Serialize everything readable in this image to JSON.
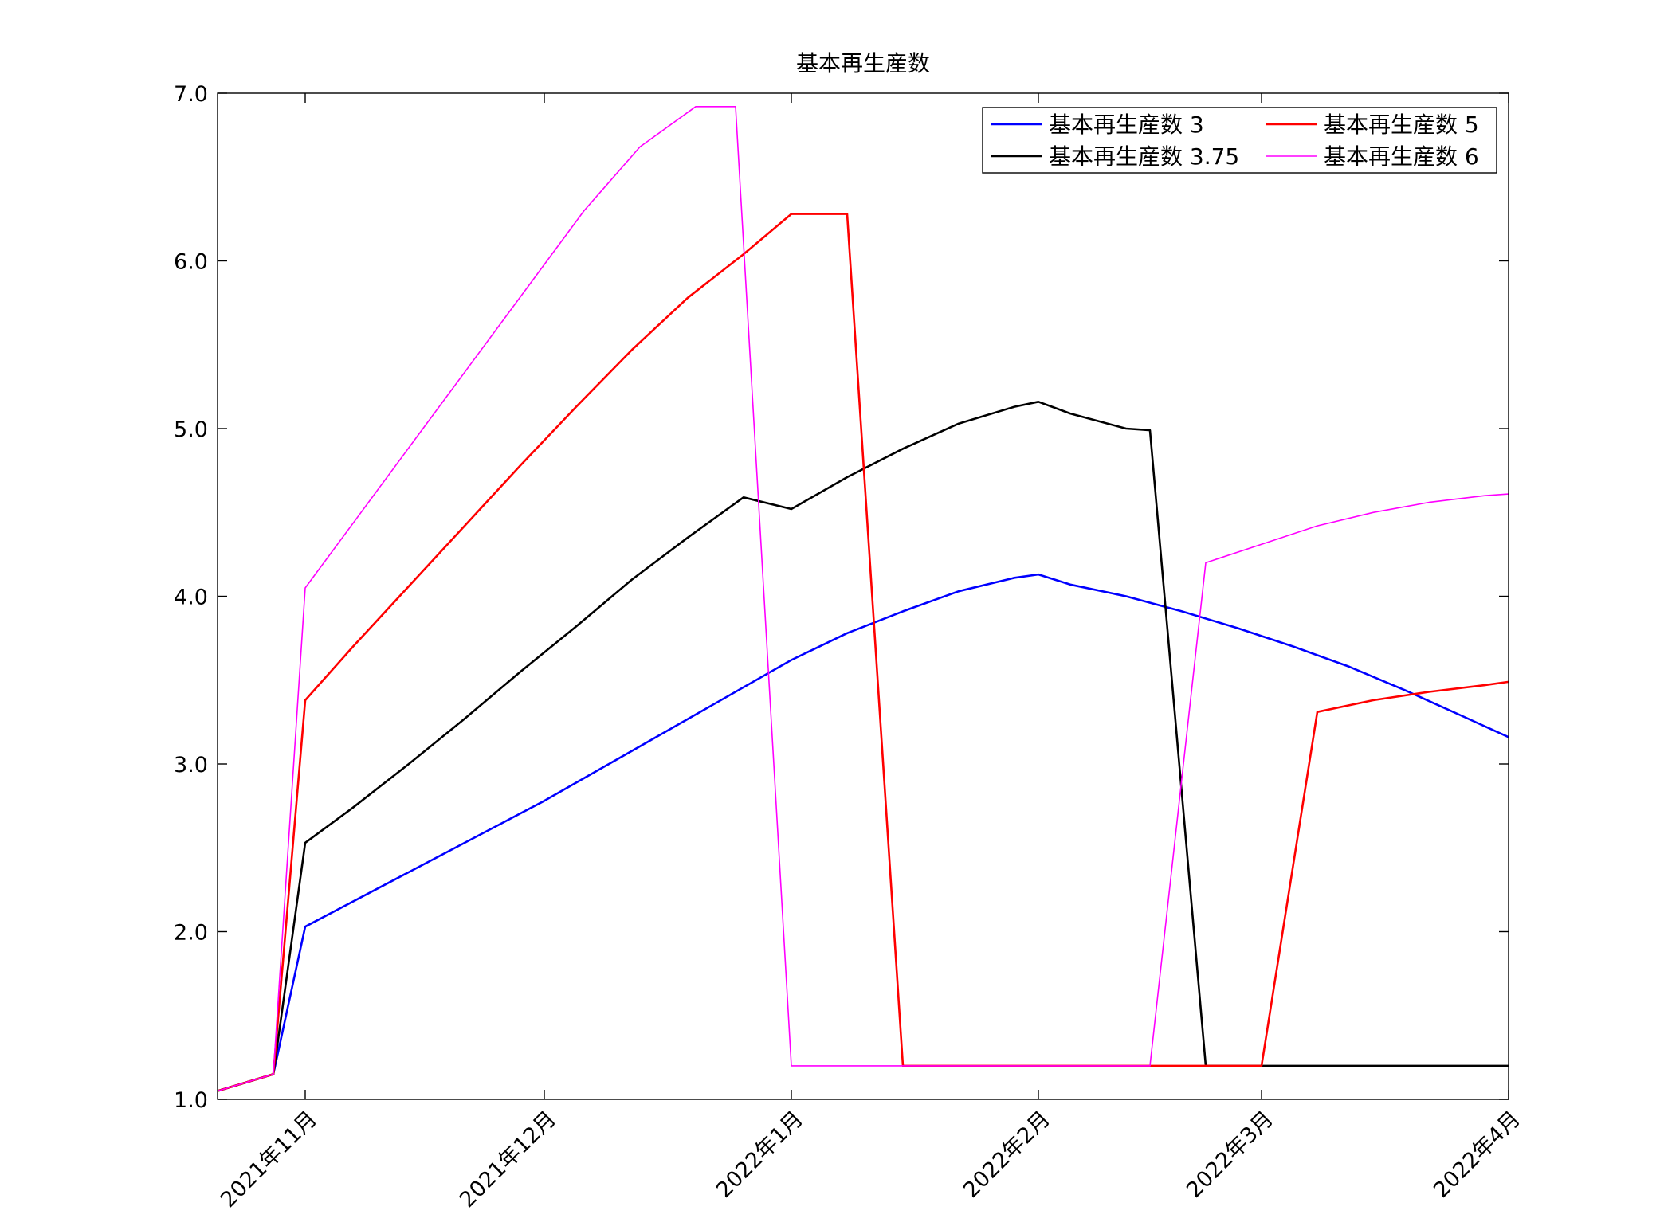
{
  "chart_data": {
    "type": "line",
    "title": "基本再生産数",
    "xlabel": "",
    "ylabel": "",
    "xlim": [
      "2021-10-21",
      "2022-04-01"
    ],
    "ylim": [
      1.0,
      7.0
    ],
    "grid": false,
    "legend_position": "top-right",
    "y_ticks": [
      {
        "value": 1.0,
        "label": "1.0"
      },
      {
        "value": 2.0,
        "label": "2.0"
      },
      {
        "value": 3.0,
        "label": "3.0"
      },
      {
        "value": 4.0,
        "label": "4.0"
      },
      {
        "value": 5.0,
        "label": "5.0"
      },
      {
        "value": 6.0,
        "label": "6.0"
      },
      {
        "value": 7.0,
        "label": "7.0"
      }
    ],
    "x_ticks": [
      {
        "date": "2021-11-01",
        "label": "2021年11月"
      },
      {
        "date": "2021-12-01",
        "label": "2021年12月"
      },
      {
        "date": "2022-01-01",
        "label": "2022年1月"
      },
      {
        "date": "2022-02-01",
        "label": "2022年2月"
      },
      {
        "date": "2022-03-01",
        "label": "2022年3月"
      },
      {
        "date": "2022-04-01",
        "label": "2022年4月"
      }
    ],
    "series": [
      {
        "name": "基本再生産数 3",
        "color": "#0000ff",
        "x": [
          "2021-10-21",
          "2021-10-28",
          "2021-11-01",
          "2021-12-01",
          "2022-01-01",
          "2022-01-08",
          "2022-01-15",
          "2022-01-22",
          "2022-01-29",
          "2022-02-01",
          "2022-02-05",
          "2022-02-12",
          "2022-02-19",
          "2022-02-26",
          "2022-03-05",
          "2022-03-12",
          "2022-03-19",
          "2022-03-26",
          "2022-04-01"
        ],
        "y": [
          1.05,
          1.15,
          2.03,
          2.78,
          3.62,
          3.78,
          3.91,
          4.03,
          4.11,
          4.13,
          4.07,
          4.0,
          3.91,
          3.81,
          3.7,
          3.58,
          3.44,
          3.29,
          3.16
        ]
      },
      {
        "name": "基本再生産数 3.75",
        "color": "#000000",
        "x": [
          "2021-10-21",
          "2021-10-28",
          "2021-11-01",
          "2021-11-07",
          "2021-11-14",
          "2021-11-21",
          "2021-11-28",
          "2021-12-05",
          "2021-12-12",
          "2021-12-19",
          "2021-12-26",
          "2022-01-01",
          "2022-01-08",
          "2022-01-15",
          "2022-01-22",
          "2022-01-29",
          "2022-02-01",
          "2022-02-05",
          "2022-02-12",
          "2022-02-15",
          "2022-02-22",
          "2022-03-01",
          "2022-04-01"
        ],
        "y": [
          1.05,
          1.15,
          2.53,
          2.74,
          3.0,
          3.27,
          3.55,
          3.82,
          4.1,
          4.35,
          4.59,
          4.52,
          4.71,
          4.88,
          5.03,
          5.13,
          5.16,
          5.09,
          5.0,
          4.99,
          1.2,
          1.2,
          1.2
        ]
      },
      {
        "name": "基本再生産数 5",
        "color": "#ff0000",
        "x": [
          "2021-10-21",
          "2021-10-28",
          "2021-11-01",
          "2021-11-07",
          "2021-11-14",
          "2021-11-21",
          "2021-11-28",
          "2021-12-05",
          "2021-12-12",
          "2021-12-19",
          "2021-12-26",
          "2022-01-01",
          "2022-01-08",
          "2022-01-15",
          "2022-02-01",
          "2022-03-01",
          "2022-03-08",
          "2022-03-15",
          "2022-03-22",
          "2022-03-29",
          "2022-04-01"
        ],
        "y": [
          1.05,
          1.15,
          3.38,
          3.7,
          4.06,
          4.42,
          4.78,
          5.13,
          5.47,
          5.78,
          6.04,
          6.28,
          6.28,
          1.2,
          1.2,
          1.2,
          3.31,
          3.38,
          3.43,
          3.47,
          3.49
        ]
      },
      {
        "name": "基本再生産数 6",
        "color": "#ff00ff",
        "x": [
          "2021-10-21",
          "2021-10-28",
          "2021-11-01",
          "2021-11-08",
          "2021-11-15",
          "2021-11-22",
          "2021-11-29",
          "2021-12-06",
          "2021-12-13",
          "2021-12-20",
          "2021-12-25",
          "2022-01-01",
          "2022-02-01",
          "2022-02-15",
          "2022-02-22",
          "2022-03-01",
          "2022-03-08",
          "2022-03-15",
          "2022-03-22",
          "2022-03-29",
          "2022-04-01"
        ],
        "y": [
          1.05,
          1.15,
          4.05,
          4.5,
          4.95,
          5.4,
          5.85,
          6.3,
          6.68,
          6.92,
          6.92,
          1.2,
          1.2,
          1.2,
          4.2,
          4.31,
          4.42,
          4.5,
          4.56,
          4.6,
          4.61
        ]
      }
    ]
  }
}
